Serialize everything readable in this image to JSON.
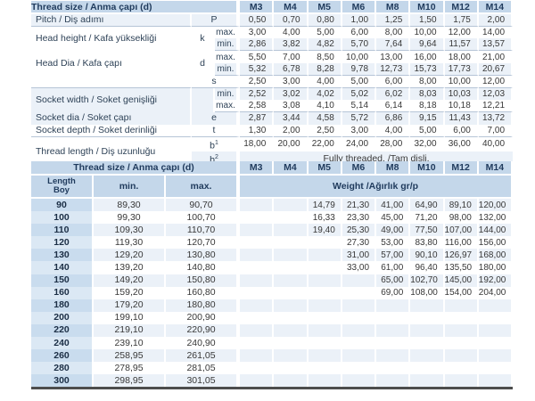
{
  "colors": {
    "header_blue": "#c4d7ea",
    "length_col_dark": "#c9dcee",
    "length_col_light": "#dbe8f4",
    "row_stripe": "#ebf1f8",
    "header_text_navy": "#1f3a5c",
    "body_text": "#383838",
    "group_line": "#b6c5d7",
    "table_border_dark": "#4d4d4d"
  },
  "top_table": {
    "header_label": "Thread size / Anma çapı (d)",
    "columns": [
      "M3",
      "M4",
      "M5",
      "M6",
      "M8",
      "M10",
      "M12",
      "M14"
    ],
    "rows": [
      {
        "label": "Pitch / Diş adımı",
        "symbol": "P",
        "symbol_cols": 2,
        "shade": true,
        "group_end": true,
        "values": [
          "0,50",
          "0,70",
          "0,80",
          "1,00",
          "1,25",
          "1,50",
          "1,75",
          "2,00"
        ]
      },
      {
        "label": "Head height / Kafa yüksekliği",
        "label_rows": 2,
        "symbol": "k",
        "symbol_rows": 2,
        "sub": "max.",
        "values": [
          "3,00",
          "4,00",
          "5,00",
          "6,00",
          "8,00",
          "10,00",
          "12,00",
          "14,00"
        ]
      },
      {
        "sub": "min.",
        "shade": true,
        "group_end": true,
        "values": [
          "2,86",
          "3,82",
          "4,82",
          "5,70",
          "7,64",
          "9,64",
          "11,57",
          "13,57"
        ]
      },
      {
        "label": "Head Dia / Kafa çapı",
        "label_rows": 2,
        "symbol": "d",
        "symbol_rows": 2,
        "sub": "max.",
        "values": [
          "5,50",
          "7,00",
          "8,50",
          "10,00",
          "13,00",
          "16,00",
          "18,00",
          "21,00"
        ]
      },
      {
        "sub": "min.",
        "shade": true,
        "group_end": true,
        "values": [
          "5,32",
          "6,78",
          "8,28",
          "9,78",
          "12,73",
          "15,73",
          "17,73",
          "20,67"
        ]
      },
      {
        "label": "",
        "symbol": "s",
        "symbol_cols": 2,
        "group_end": true,
        "values": [
          "2,50",
          "3,00",
          "4,00",
          "5,00",
          "6,00",
          "8,00",
          "10,00",
          "12,00"
        ]
      },
      {
        "label": "Socket width / Soket genişliği",
        "label_rows": 2,
        "symbol": "",
        "symbol_rows": 2,
        "sub": "min.",
        "shade": true,
        "values": [
          "2,52",
          "3,02",
          "4,02",
          "5,02",
          "6,02",
          "8,03",
          "10,03",
          "12,03"
        ]
      },
      {
        "sub": "max.",
        "group_end": true,
        "values": [
          "2,58",
          "3,08",
          "4,10",
          "5,14",
          "6,14",
          "8,18",
          "10,18",
          "12,21"
        ]
      },
      {
        "label": "Socket dia / Soket çapı",
        "symbol": "e",
        "symbol_cols": 2,
        "shade": true,
        "values": [
          "2,87",
          "3,44",
          "4,58",
          "5,72",
          "6,86",
          "9,15",
          "11,43",
          "13,72"
        ]
      },
      {
        "label": "Socket depth / Soket derinliği",
        "symbol": "t",
        "symbol_cols": 2,
        "group_end": true,
        "values": [
          "1,30",
          "2,00",
          "2,50",
          "3,00",
          "4,00",
          "5,00",
          "6,00",
          "7,00"
        ]
      },
      {
        "label": "Thread length / Diş uzunluğu",
        "label_rows": 2,
        "symbol": "b",
        "sup": "1",
        "symbol_cols": 2,
        "values": [
          "18,00",
          "20,00",
          "22,00",
          "24,00",
          "28,00",
          "32,00",
          "36,00",
          "40,00"
        ]
      },
      {
        "symbol": "b",
        "sup": "2",
        "symbol_cols": 2,
        "shade": true,
        "fully": "Fully threaded. /Tam dişli."
      }
    ]
  },
  "bottom_table": {
    "header_label": "Thread size / Anma çapı (d)",
    "columns": [
      "M3",
      "M4",
      "M5",
      "M6",
      "M8",
      "M10",
      "M12",
      "M14"
    ],
    "length_label": "Length",
    "length_label_tr": "Boy",
    "min_label": "min.",
    "max_label": "max.",
    "weight_label": "Weight /Ağırlık gr/p",
    "rows": [
      {
        "length": "90",
        "min": "89,30",
        "max": "90,70",
        "weights": [
          "",
          "",
          "14,79",
          "21,30",
          "41,00",
          "64,90",
          "89,10",
          "120,00"
        ]
      },
      {
        "length": "100",
        "min": "99,30",
        "max": "100,70",
        "weights": [
          "",
          "",
          "16,33",
          "23,30",
          "45,00",
          "71,20",
          "98,00",
          "132,00"
        ]
      },
      {
        "length": "110",
        "min": "109,30",
        "max": "110,70",
        "weights": [
          "",
          "",
          "19,40",
          "25,30",
          "49,00",
          "77,50",
          "107,00",
          "144,00"
        ]
      },
      {
        "length": "120",
        "min": "119,30",
        "max": "120,70",
        "weights": [
          "",
          "",
          "",
          "27,30",
          "53,00",
          "83,80",
          "116,00",
          "156,00"
        ]
      },
      {
        "length": "130",
        "min": "129,20",
        "max": "130,80",
        "weights": [
          "",
          "",
          "",
          "31,00",
          "57,00",
          "90,10",
          "126,97",
          "168,00"
        ]
      },
      {
        "length": "140",
        "min": "139,20",
        "max": "140,80",
        "weights": [
          "",
          "",
          "",
          "33,00",
          "61,00",
          "96,40",
          "135,50",
          "180,00"
        ]
      },
      {
        "length": "150",
        "min": "149,20",
        "max": "150,80",
        "weights": [
          "",
          "",
          "",
          "",
          "65,00",
          "102,70",
          "145,00",
          "192,00"
        ]
      },
      {
        "length": "160",
        "min": "159,20",
        "max": "160,80",
        "weights": [
          "",
          "",
          "",
          "",
          "69,00",
          "108,00",
          "154,00",
          "204,00"
        ]
      },
      {
        "length": "180",
        "min": "179,20",
        "max": "180,80",
        "weights": [
          "",
          "",
          "",
          "",
          "",
          "",
          "",
          ""
        ]
      },
      {
        "length": "200",
        "min": "199,10",
        "max": "200,90",
        "weights": [
          "",
          "",
          "",
          "",
          "",
          "",
          "",
          ""
        ]
      },
      {
        "length": "220",
        "min": "219,10",
        "max": "220,90",
        "weights": [
          "",
          "",
          "",
          "",
          "",
          "",
          "",
          ""
        ]
      },
      {
        "length": "240",
        "min": "239,10",
        "max": "240,90",
        "weights": [
          "",
          "",
          "",
          "",
          "",
          "",
          "",
          ""
        ]
      },
      {
        "length": "260",
        "min": "258,95",
        "max": "261,05",
        "weights": [
          "",
          "",
          "",
          "",
          "",
          "",
          "",
          ""
        ]
      },
      {
        "length": "280",
        "min": "278,95",
        "max": "281,05",
        "weights": [
          "",
          "",
          "",
          "",
          "",
          "",
          "",
          ""
        ]
      },
      {
        "length": "300",
        "min": "298,95",
        "max": "301,05",
        "weights": [
          "",
          "",
          "",
          "",
          "",
          "",
          "",
          ""
        ]
      }
    ]
  }
}
